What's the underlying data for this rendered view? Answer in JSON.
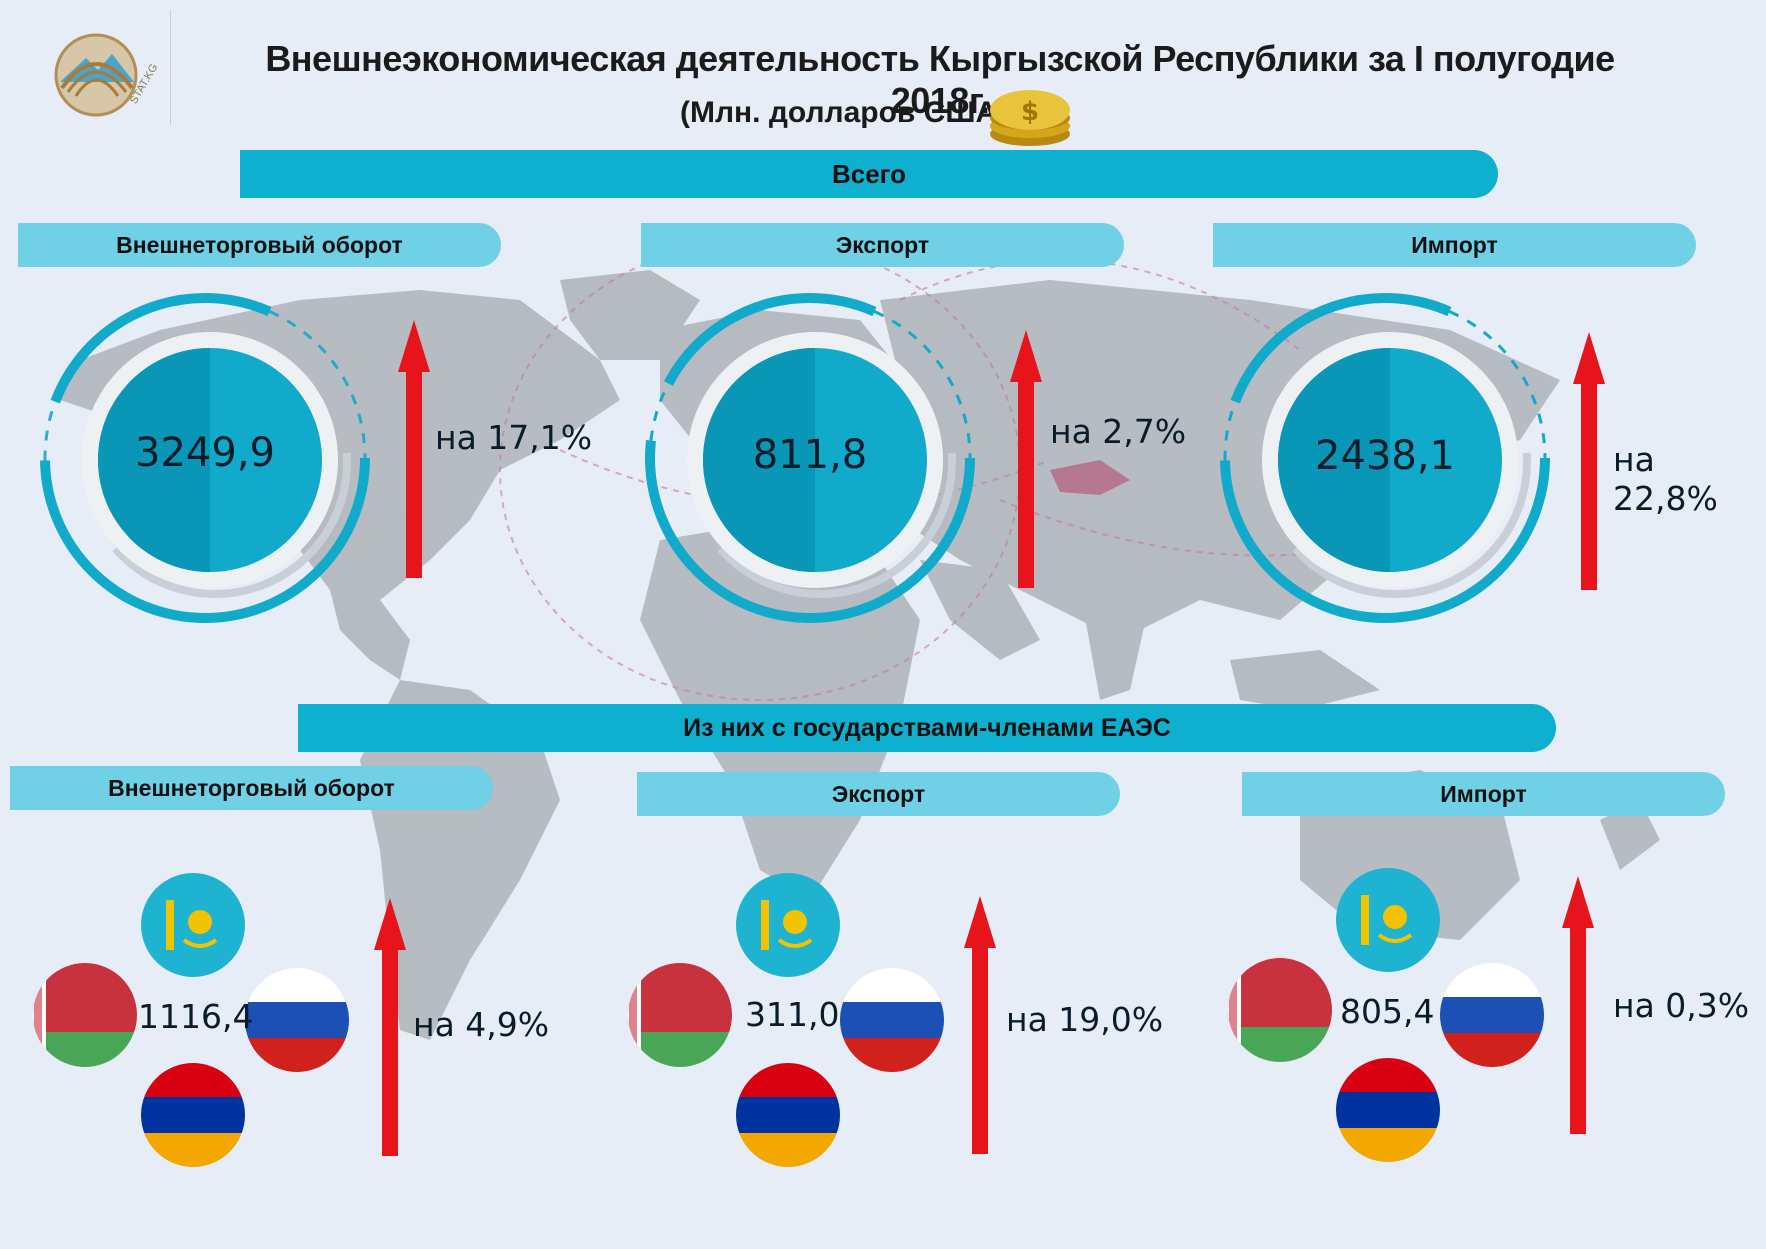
{
  "header": {
    "title": "Внешнеэкономическая деятельность Кыргызской Республики за I полугодие 2018г.",
    "subtitle": "(Млн. долларов США)",
    "logo_text": "STAT.KG"
  },
  "total": {
    "ribbon": "Всего",
    "cards": [
      {
        "label": "Внешнеторговый оборот",
        "value": "3249,9",
        "change": "на 17,1%"
      },
      {
        "label": "Экспорт",
        "value": "811,8",
        "change": "на 2,7%"
      },
      {
        "label": "Импорт",
        "value": "2438,1",
        "change": "на 22,8%"
      }
    ]
  },
  "eaeu": {
    "ribbon": "Из них с государствами-членами ЕАЭС",
    "cards": [
      {
        "label": "Внешнеторговый оборот",
        "value": "1116,4",
        "change": "на 4,9%"
      },
      {
        "label": "Экспорт",
        "value": "311,0",
        "change": "на 19,0%"
      },
      {
        "label": "Импорт",
        "value": "805,4",
        "change": "на 0,3%"
      }
    ],
    "flags": [
      "kazakhstan-flag",
      "belarus-flag",
      "russia-flag",
      "armenia-flag"
    ]
  },
  "colors": {
    "ribbon": "#0fb0cf",
    "tab": "#6fd0e6",
    "circle": "#12aacb",
    "arrow": "#e8141b",
    "background": "#e6edf6",
    "map": "#a9adb3"
  }
}
